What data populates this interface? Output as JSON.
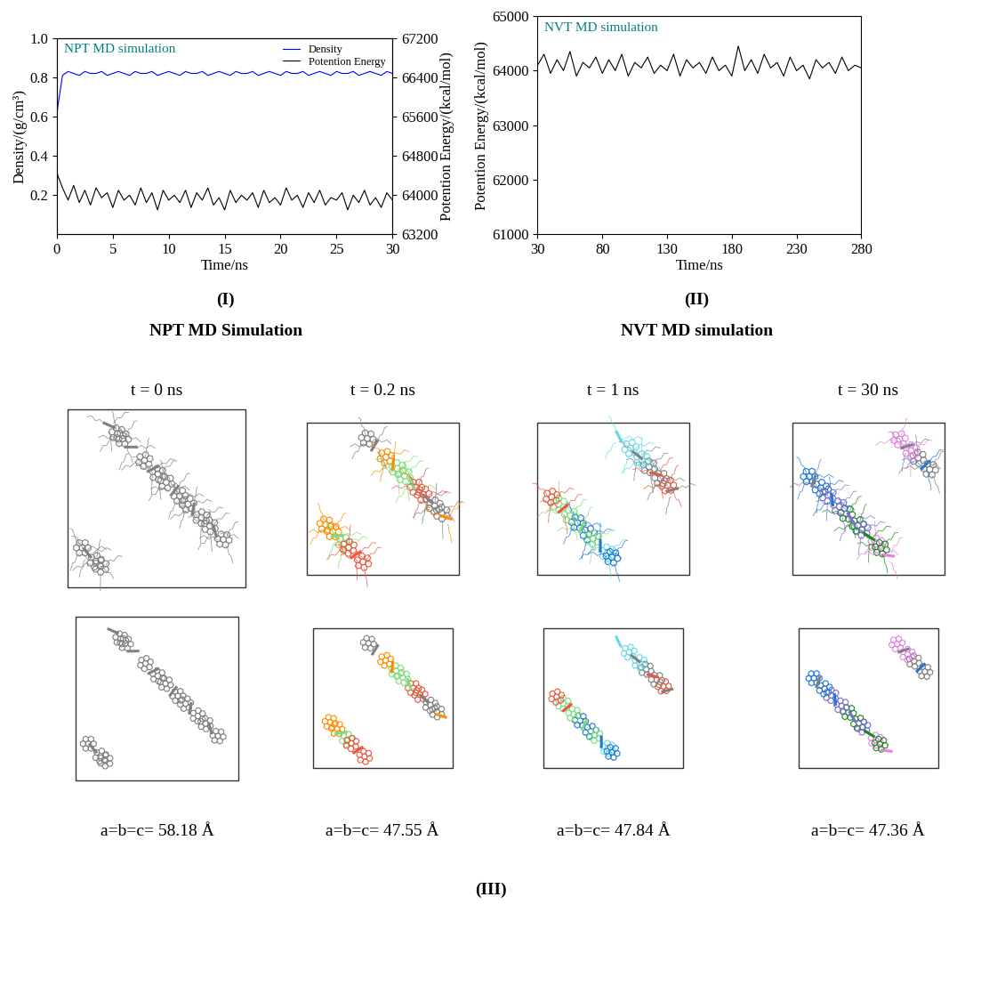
{
  "chart_data": [
    {
      "type": "line",
      "annotation": "NPT MD simulation",
      "xlabel": "Time/ns",
      "ylabel": "Density/(g/cm³)",
      "y2label": "Potention Energy/(kcal/mol)",
      "xlim": [
        0,
        30
      ],
      "xticks": [
        0,
        5,
        10,
        15,
        20,
        25,
        30
      ],
      "ylim": [
        0,
        1.0
      ],
      "yticks": [
        0.2,
        0.4,
        0.6,
        0.8,
        1.0
      ],
      "y2lim": [
        63200,
        67200
      ],
      "y2ticks": [
        63200,
        64000,
        64800,
        65600,
        66400,
        67200
      ],
      "legend": "upper right",
      "x": [
        0,
        0.5,
        1,
        1.5,
        2,
        2.5,
        3,
        3.5,
        4,
        4.5,
        5,
        5.5,
        6,
        6.5,
        7,
        7.5,
        8,
        8.5,
        9,
        9.5,
        10,
        10.5,
        11,
        11.5,
        12,
        12.5,
        13,
        13.5,
        14,
        14.5,
        15,
        15.5,
        16,
        16.5,
        17,
        17.5,
        18,
        18.5,
        19,
        19.5,
        20,
        20.5,
        21,
        21.5,
        22,
        22.5,
        23,
        23.5,
        24,
        24.5,
        25,
        25.5,
        26,
        26.5,
        27,
        27.5,
        28,
        28.5,
        29,
        29.5,
        30
      ],
      "series": [
        {
          "name": "Density",
          "color": "#0000ff",
          "values": [
            0.62,
            0.81,
            0.83,
            0.82,
            0.81,
            0.83,
            0.82,
            0.82,
            0.83,
            0.81,
            0.82,
            0.83,
            0.82,
            0.81,
            0.83,
            0.82,
            0.82,
            0.83,
            0.81,
            0.82,
            0.83,
            0.82,
            0.81,
            0.83,
            0.82,
            0.82,
            0.83,
            0.81,
            0.82,
            0.83,
            0.82,
            0.81,
            0.83,
            0.82,
            0.82,
            0.83,
            0.81,
            0.82,
            0.83,
            0.82,
            0.81,
            0.83,
            0.82,
            0.82,
            0.83,
            0.81,
            0.82,
            0.83,
            0.82,
            0.81,
            0.83,
            0.82,
            0.82,
            0.83,
            0.81,
            0.82,
            0.83,
            0.82,
            0.81,
            0.83,
            0.82
          ]
        },
        {
          "name": "Potention Energy",
          "color": "#000000",
          "axis": "y2",
          "values": [
            64450,
            64150,
            63900,
            64200,
            63850,
            64100,
            63800,
            64150,
            63950,
            64050,
            63750,
            64100,
            63900,
            64000,
            63800,
            64150,
            63850,
            64050,
            63700,
            64100,
            63900,
            64000,
            63850,
            64100,
            63750,
            64050,
            63900,
            64150,
            63800,
            63950,
            63700,
            64100,
            63850,
            64000,
            63900,
            64050,
            63750,
            64100,
            63850,
            63950,
            63800,
            64150,
            63900,
            64000,
            63750,
            64050,
            63850,
            64100,
            63800,
            63950,
            63900,
            64050,
            63700,
            64000,
            63850,
            64100,
            63800,
            63950,
            63750,
            64050,
            63900
          ]
        }
      ]
    },
    {
      "type": "line",
      "annotation": "NVT MD simulation",
      "xlabel": "Time/ns",
      "ylabel": "Potention Energy/(kcal/mol)",
      "xlim": [
        30,
        280
      ],
      "xticks": [
        30,
        80,
        130,
        180,
        230,
        280
      ],
      "ylim": [
        61000,
        65000
      ],
      "yticks": [
        61000,
        62000,
        63000,
        64000,
        65000
      ],
      "x": [
        30,
        35,
        40,
        45,
        50,
        55,
        60,
        65,
        70,
        75,
        80,
        85,
        90,
        95,
        100,
        105,
        110,
        115,
        120,
        125,
        130,
        135,
        140,
        145,
        150,
        155,
        160,
        165,
        170,
        175,
        180,
        185,
        190,
        195,
        200,
        205,
        210,
        215,
        220,
        225,
        230,
        235,
        240,
        245,
        250,
        255,
        260,
        265,
        270,
        275,
        280
      ],
      "series": [
        {
          "name": "Potention Energy",
          "color": "#000000",
          "values": [
            64100,
            64300,
            63950,
            64200,
            64000,
            64350,
            63900,
            64150,
            64050,
            64250,
            63950,
            64200,
            64000,
            64300,
            63900,
            64150,
            64050,
            64250,
            63950,
            64100,
            64000,
            64300,
            63900,
            64200,
            64050,
            64150,
            63950,
            64250,
            64000,
            64100,
            63900,
            64450,
            64000,
            64200,
            63950,
            64300,
            64050,
            64150,
            63900,
            64250,
            64000,
            64100,
            63850,
            64200,
            64050,
            64150,
            63950,
            64250,
            64000,
            64100,
            64050
          ]
        }
      ]
    }
  ],
  "captions": [
    {
      "label": "(I)",
      "title": "NPT MD Simulation"
    },
    {
      "label": "(II)",
      "title": "NVT MD simulation"
    }
  ],
  "snapshots": {
    "times": [
      "t = 0 ns",
      "t = 0.2 ns",
      "t = 1 ns",
      "t = 30 ns"
    ],
    "cells": [
      "a=b=c= 58.18 Å",
      "a=b=c= 47.55 Å",
      "a=b=c= 47.84 Å",
      "a=b=c= 47.36 Å"
    ],
    "label": "(III)"
  }
}
